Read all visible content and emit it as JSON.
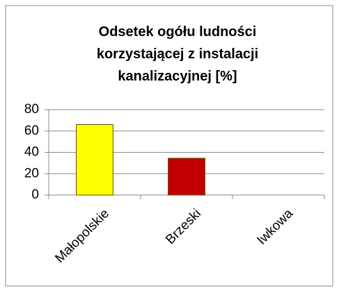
{
  "chart_data": {
    "type": "bar",
    "title": "Odsetek ogółu ludności korzystającej z instalacji kanalizacyjnej [%]",
    "categories": [
      "Małopolskie",
      "Brzeski",
      "Iwkowa"
    ],
    "values": [
      66,
      34.5,
      0
    ],
    "colors": [
      "#ffff00",
      "#c00000",
      "#c00000"
    ],
    "ylim": [
      0,
      80
    ],
    "yticks": [
      0,
      20,
      40,
      60,
      80
    ],
    "grid": true
  }
}
